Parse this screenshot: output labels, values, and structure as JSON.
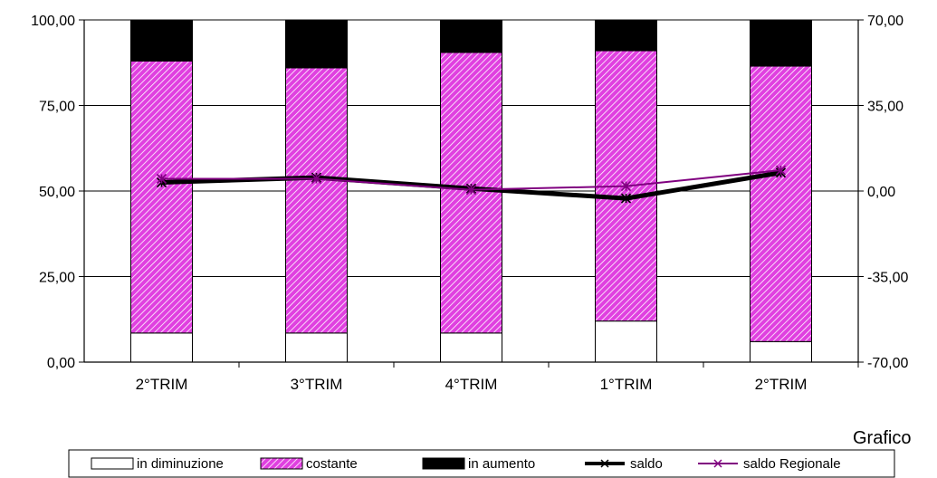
{
  "chart_data": {
    "type": "bar",
    "stacked": true,
    "categories": [
      "2°TRIM",
      "3°TRIM",
      "4°TRIM",
      "1°TRIM",
      "2°TRIM"
    ],
    "left_axis": {
      "ylim": [
        0,
        100
      ],
      "ticks": [
        "0,00",
        "25,00",
        "50,00",
        "75,00",
        "100,00"
      ]
    },
    "right_axis": {
      "ylim": [
        -70,
        70
      ],
      "ticks": [
        "-70,00",
        "-35,00",
        "0,00",
        "35,00",
        "70,00"
      ]
    },
    "series": [
      {
        "name": "in diminuzione",
        "type": "bar",
        "axis": "left",
        "values": [
          8.5,
          8.5,
          8.5,
          12.0,
          6.0
        ],
        "color": "#ffffff"
      },
      {
        "name": "costante",
        "type": "bar",
        "axis": "left",
        "values": [
          79.5,
          77.5,
          82.0,
          79.0,
          80.5
        ],
        "color": "#e040e0"
      },
      {
        "name": "in aumento",
        "type": "bar",
        "axis": "left",
        "values": [
          12.0,
          14.0,
          9.5,
          9.0,
          13.5
        ],
        "color": "#000000"
      },
      {
        "name": "saldo",
        "type": "line",
        "axis": "right",
        "values": [
          3.5,
          5.5,
          1.0,
          -3.0,
          7.5
        ],
        "color": "#000000"
      },
      {
        "name": "saldo Regionale",
        "type": "line",
        "axis": "right",
        "values": [
          5.0,
          5.0,
          0.5,
          2.0,
          8.5
        ],
        "color": "#800080"
      }
    ],
    "grid": true,
    "legend_position": "bottom"
  },
  "caption": "Grafico"
}
